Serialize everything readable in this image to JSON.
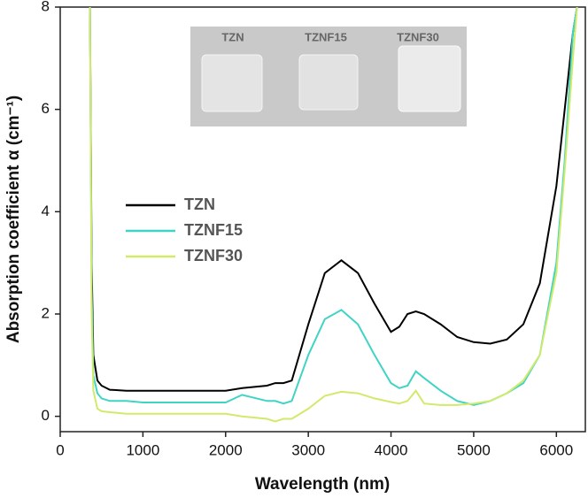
{
  "chart_data": {
    "type": "line",
    "x_label": "Wavelength (nm)",
    "y_label": "Absorption coefficient α (cm⁻¹)",
    "x": [
      360,
      380,
      400,
      450,
      500,
      600,
      800,
      1000,
      1500,
      2000,
      2200,
      2500,
      2600,
      2700,
      2800,
      3000,
      3200,
      3400,
      3600,
      3800,
      4000,
      4100,
      4200,
      4300,
      4400,
      4600,
      4800,
      5000,
      5200,
      5400,
      5600,
      5800,
      6000,
      6100,
      6200,
      6250
    ],
    "series": [
      {
        "name": "TZN",
        "color": "#000000",
        "values": [
          8,
          3,
          1.2,
          0.7,
          0.6,
          0.52,
          0.5,
          0.5,
          0.5,
          0.5,
          0.55,
          0.6,
          0.65,
          0.65,
          0.7,
          1.8,
          2.8,
          3.05,
          2.8,
          2.2,
          1.65,
          1.75,
          2.0,
          2.05,
          2.0,
          1.8,
          1.55,
          1.45,
          1.42,
          1.5,
          1.8,
          2.6,
          4.5,
          6,
          7.5,
          8
        ]
      },
      {
        "name": "TZNF15",
        "color": "#40d4c4",
        "values": [
          8,
          2.5,
          0.8,
          0.45,
          0.35,
          0.3,
          0.3,
          0.27,
          0.27,
          0.27,
          0.42,
          0.3,
          0.3,
          0.25,
          0.3,
          1.2,
          1.9,
          2.08,
          1.8,
          1.2,
          0.65,
          0.55,
          0.6,
          0.88,
          0.75,
          0.5,
          0.3,
          0.22,
          0.3,
          0.45,
          0.65,
          1.2,
          3,
          5,
          7.5,
          8
        ]
      },
      {
        "name": "TZNF30",
        "color": "#d2ea6c",
        "values": [
          8,
          2,
          0.5,
          0.15,
          0.1,
          0.08,
          0.05,
          0.05,
          0.05,
          0.05,
          0,
          -0.05,
          -0.1,
          -0.05,
          -0.05,
          0.15,
          0.4,
          0.48,
          0.45,
          0.35,
          0.28,
          0.25,
          0.3,
          0.5,
          0.25,
          0.22,
          0.22,
          0.25,
          0.3,
          0.45,
          0.7,
          1.2,
          2.8,
          4.8,
          7,
          8
        ]
      }
    ],
    "xlim": [
      0,
      6350
    ],
    "xticks": [
      0,
      1000,
      2000,
      3000,
      4000,
      5000,
      6000
    ],
    "ylim": [
      -0.3,
      8
    ],
    "yticks": [
      0,
      2,
      4,
      6,
      8
    ],
    "inset_labels": [
      "TZN",
      "TZNF15",
      "TZNF30"
    ]
  }
}
